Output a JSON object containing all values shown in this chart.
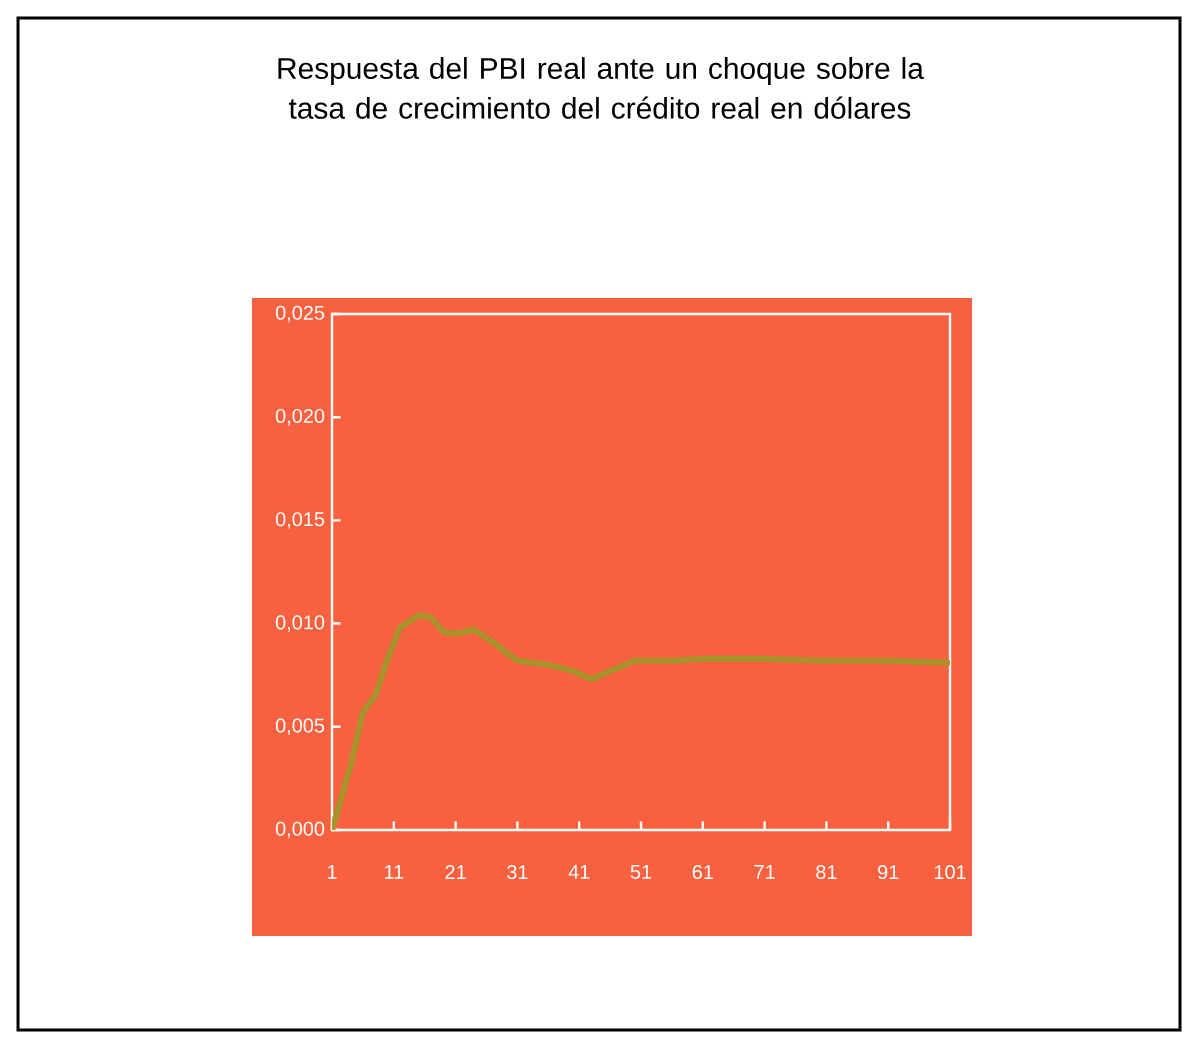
{
  "chart_data": {
    "type": "line",
    "title": "Respuesta del PBI real ante un choque sobre la tasa de crecimiento del crédito real en dólares",
    "x": [
      1,
      4,
      6,
      8,
      10,
      12,
      15,
      17,
      19,
      21,
      24,
      27,
      31,
      36,
      40,
      43,
      46,
      50,
      56,
      61,
      71,
      81,
      91,
      101
    ],
    "values": [
      0,
      0.0031,
      0.0057,
      0.0065,
      0.0083,
      0.0098,
      0.0104,
      0.0103,
      0.0096,
      0.0095,
      0.0097,
      0.0091,
      0.0082,
      0.008,
      0.0077,
      0.0073,
      0.0077,
      0.0082,
      0.0082,
      0.0083,
      0.0083,
      0.0082,
      0.0082,
      0.0081
    ],
    "color": "#a8922a",
    "xlim": [
      1,
      101
    ],
    "xticks": [
      1,
      11,
      21,
      31,
      41,
      51,
      61,
      71,
      81,
      91,
      101
    ],
    "ylim": [
      0,
      0.025
    ],
    "yticks": [
      {
        "value": 0,
        "label": "0,000"
      },
      {
        "value": 0.005,
        "label": "0,005"
      },
      {
        "value": 0.01,
        "label": "0,010"
      },
      {
        "value": 0.015,
        "label": "0,015"
      },
      {
        "value": 0.02,
        "label": "0,020"
      },
      {
        "value": 0.025,
        "label": "0,025"
      }
    ],
    "grid": false,
    "marker": "none",
    "line_style": "solid"
  }
}
